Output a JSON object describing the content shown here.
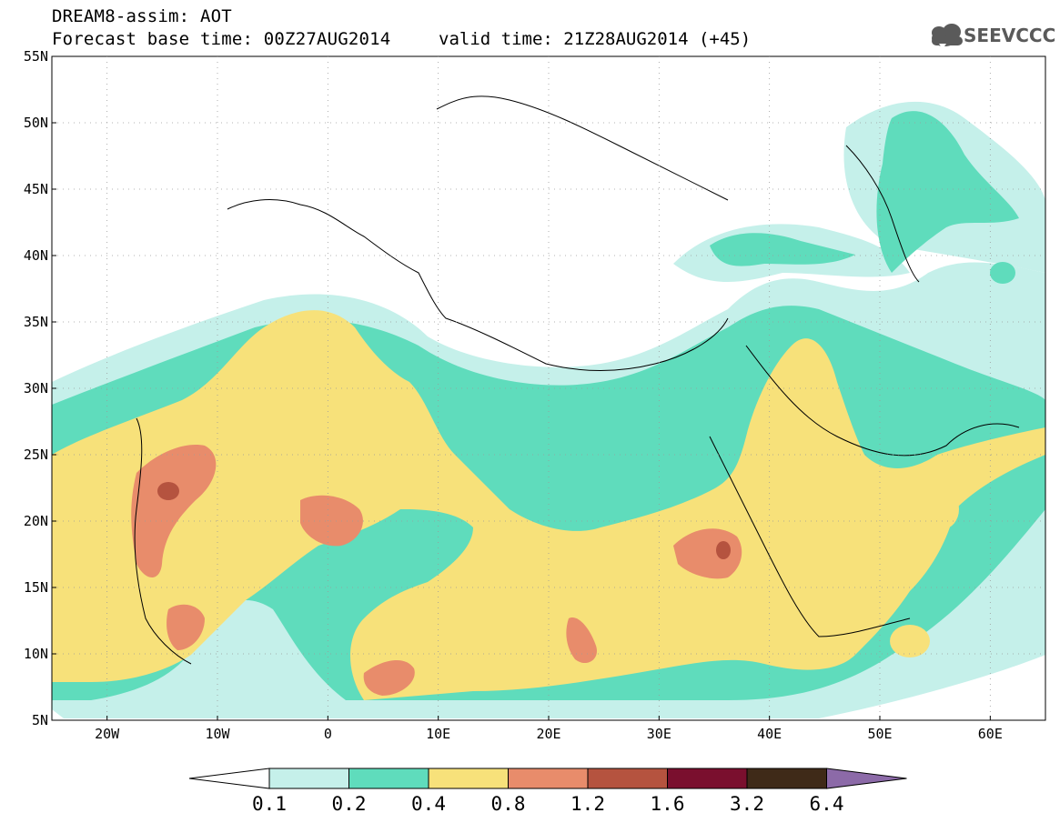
{
  "header": {
    "title_line1": "DREAM8-assim: AOT",
    "title_line2": "Forecast base time: 00Z27AUG2014",
    "valid_time": "valid time: 21Z28AUG2014 (+45)",
    "logo_text": "SEEVCCC"
  },
  "axes": {
    "lat_labels": [
      "55N",
      "50N",
      "45N",
      "40N",
      "35N",
      "30N",
      "25N",
      "20N",
      "15N",
      "10N",
      "5N"
    ],
    "lon_labels": [
      "20W",
      "10W",
      "0",
      "10E",
      "20E",
      "30E",
      "40E",
      "50E",
      "60E"
    ],
    "lon_range": [
      -25,
      65
    ],
    "lat_range": [
      5,
      55
    ],
    "grid": "dotted"
  },
  "colorbar": {
    "levels": [
      "0.1",
      "0.2",
      "0.4",
      "0.8",
      "1.2",
      "1.6",
      "3.2",
      "6.4"
    ],
    "colors": [
      "#c5f0ea",
      "#5fdcbc",
      "#f7e17a",
      "#e88c6b",
      "#b5533f",
      "#7a0f2e",
      "#3f2a18",
      "#8c6aa8"
    ]
  },
  "colors": {
    "aot_01": "#c5f0ea",
    "aot_02": "#5fdcbc",
    "aot_04": "#f7e17a",
    "aot_08": "#e88c6b",
    "aot_12": "#b5533f",
    "logo": "#5a5a5a"
  }
}
